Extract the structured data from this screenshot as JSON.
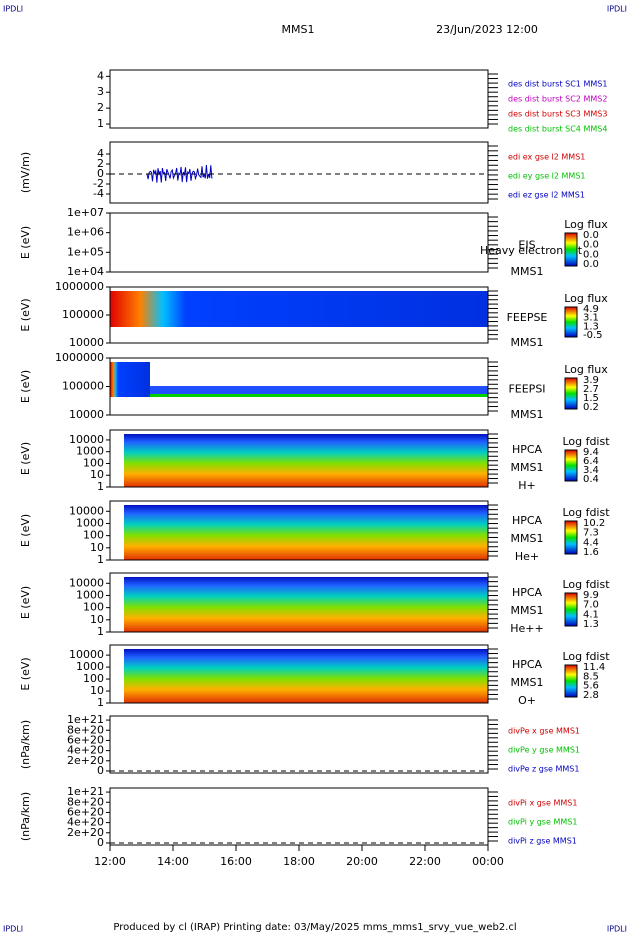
{
  "header": {
    "corner_left": "IPDLI",
    "corner_right": "IPDLI",
    "title": "MMS1",
    "date": "23/Jun/2023 12:00"
  },
  "footer": {
    "text": "Produced by cl (IRAP)   Printing date: 03/May/2025   mms_mms1_srvy_vue_web2.cl",
    "corner_left": "IPDLI",
    "corner_right": "IPDLI"
  },
  "xticks": [
    "12:00",
    "14:00",
    "16:00",
    "18:00",
    "20:00",
    "22:00",
    "00:00"
  ],
  "panels": [
    {
      "top": 0,
      "ylim": [
        0.75,
        4.4
      ],
      "yticks": [
        1,
        2,
        3,
        4
      ],
      "legend": [
        {
          "name": "des dist burst SC1 MMS1",
          "color": "#0000c0"
        },
        {
          "name": "des dist burst SC2 MMS2",
          "color": "#c000c0"
        },
        {
          "name": "des dist burst SC3 MMS3",
          "color": "#d00000"
        },
        {
          "name": "des dist burst SC4 MMS4",
          "color": "#00c000"
        }
      ]
    },
    {
      "ylabel": "(mV/m)",
      "ylim": [
        -5.8,
        6.4
      ],
      "yticks": [
        -4,
        -2,
        0,
        2,
        4
      ],
      "zero": true,
      "lines": true,
      "legend": [
        {
          "name": "edi ex gse l2 MMS1",
          "color": "#d00000"
        },
        {
          "name": "edi ey gse l2 MMS1",
          "color": "#00c000"
        },
        {
          "name": "edi ez gse l2 MMS1",
          "color": "#0000c0"
        }
      ]
    },
    {
      "ylabel": "E (eV)",
      "log": true,
      "ylim": [
        10000,
        10000000
      ],
      "yticks": [
        {
          "value": 10000,
          "label": "1e+04"
        },
        {
          "value": 100000,
          "label": "1e+05"
        },
        {
          "value": 1000000,
          "label": "1e+06"
        },
        {
          "value": 10000000,
          "label": "1e+07"
        }
      ],
      "labels": [
        "EIS",
        "MMS1"
      ],
      "overlay": "Heavy electron tot",
      "cbar_title": "Log flux",
      "cbar": [
        "0.0",
        "0.0",
        "0.0",
        "0.0"
      ]
    },
    {
      "ylabel": "E (eV)",
      "log": true,
      "ylim": [
        10000,
        1000000
      ],
      "yticks": [
        10000,
        100000,
        1000000
      ],
      "labels": [
        "FEEPSE",
        "MMS1"
      ],
      "cbar_title": "Log flux",
      "cbar": [
        "4.9",
        "3.1",
        "1.3",
        "-0.5"
      ],
      "spec": "feeps"
    },
    {
      "ylabel": "E (eV)",
      "log": true,
      "ylim": [
        10000,
        1000000
      ],
      "yticks": [
        10000,
        100000,
        1000000
      ],
      "labels": [
        "FEEPSI",
        "MMS1"
      ],
      "cbar_title": "Log flux",
      "cbar": [
        "3.9",
        "2.7",
        "1.5",
        "0.2"
      ],
      "spec": "feepsi"
    },
    {
      "ylabel": "E (eV)",
      "log": true,
      "ylim": [
        1,
        70000
      ],
      "yticks": [
        1,
        10,
        100,
        1000,
        10000
      ],
      "labels": [
        "HPCA",
        "MMS1",
        "H+"
      ],
      "cbar_title": "Log fdist",
      "cbar": [
        "9.4",
        "6.4",
        "3.4",
        "0.4"
      ],
      "spec": "hpca"
    },
    {
      "ylabel": "E (eV)",
      "log": true,
      "ylim": [
        1,
        70000
      ],
      "yticks": [
        1,
        10,
        100,
        1000,
        10000
      ],
      "labels": [
        "HPCA",
        "MMS1",
        "He+"
      ],
      "cbar_title": "Log fdist",
      "cbar": [
        "10.2",
        "7.3",
        "4.4",
        "1.6"
      ],
      "spec": "hpca"
    },
    {
      "ylabel": "E (eV)",
      "log": true,
      "ylim": [
        1,
        70000
      ],
      "yticks": [
        1,
        10,
        100,
        1000,
        10000
      ],
      "labels": [
        "HPCA",
        "MMS1",
        "He++"
      ],
      "cbar_title": "Log fdist",
      "cbar": [
        "9.9",
        "7.0",
        "4.1",
        "1.3"
      ],
      "spec": "hpca"
    },
    {
      "ylabel": "E (eV)",
      "log": true,
      "ylim": [
        1,
        70000
      ],
      "yticks": [
        1,
        10,
        100,
        1000,
        10000
      ],
      "labels": [
        "HPCA",
        "MMS1",
        "O+"
      ],
      "cbar_title": "Log fdist",
      "cbar": [
        "11.4",
        "8.5",
        "5.6",
        "2.8"
      ],
      "spec": "hpca"
    },
    {
      "ylabel": "(nPa/km)",
      "ylim": [
        -4e+19,
        1.08e+21
      ],
      "yticks": [
        0,
        {
          "value": 2e+20,
          "label": "2e+20"
        },
        {
          "value": 4e+20,
          "label": "4e+20"
        },
        {
          "value": 6e+20,
          "label": "6e+20"
        },
        {
          "value": 8e+20,
          "label": "8e+20"
        },
        {
          "value": 1e+21,
          "label": "1e+21"
        }
      ],
      "zero": true,
      "legend": [
        {
          "name": "divPe x gse MMS1",
          "color": "#d00000"
        },
        {
          "name": "divPe y gse MMS1",
          "color": "#00c000"
        },
        {
          "name": "divPe z gse MMS1",
          "color": "#0000c0"
        }
      ]
    },
    {
      "ylabel": "(nPa/km)",
      "ylim": [
        -4e+19,
        1.08e+21
      ],
      "yticks": [
        0,
        {
          "value": 2e+20,
          "label": "2e+20"
        },
        {
          "value": 4e+20,
          "label": "4e+20"
        },
        {
          "value": 6e+20,
          "label": "6e+20"
        },
        {
          "value": 8e+20,
          "label": "8e+20"
        },
        {
          "value": 1e+21,
          "label": "1e+21"
        }
      ],
      "zero": true,
      "legend": [
        {
          "name": "divPi x gse MMS1",
          "color": "#d00000"
        },
        {
          "name": "divPi y gse MMS1",
          "color": "#00c000"
        },
        {
          "name": "divPi z gse MMS1",
          "color": "#0000c0"
        }
      ]
    }
  ]
}
